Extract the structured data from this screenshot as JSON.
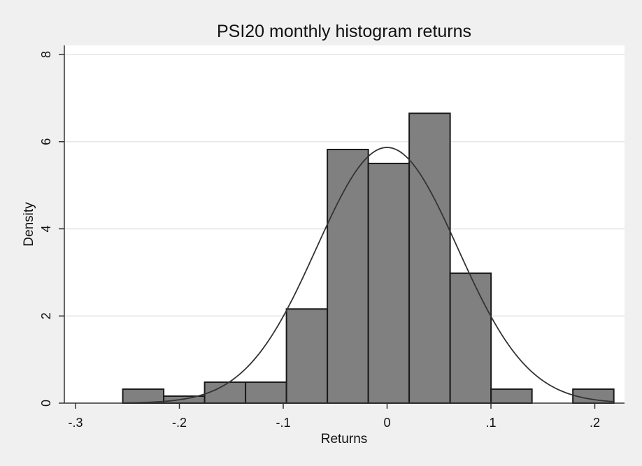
{
  "chart_data": {
    "type": "bar",
    "title": "PSI20 monthly histogram returns",
    "xlabel": "Returns",
    "ylabel": "Density",
    "xlim": [
      -0.3,
      0.22
    ],
    "ylim": [
      0,
      8
    ],
    "x_ticks": [
      -0.3,
      -0.2,
      -0.1,
      0,
      0.1,
      0.2
    ],
    "x_tick_labels": [
      "-.3",
      "-.2",
      "-.1",
      "0",
      ".1",
      ".2"
    ],
    "y_ticks": [
      0,
      2,
      4,
      6,
      8
    ],
    "y_tick_labels": [
      "0",
      "2",
      "4",
      "6",
      "8"
    ],
    "grid": "horizontal",
    "bar_color": "#808080",
    "bar_edge_color": "#1a1a1a",
    "bins": [
      {
        "x0": -0.2545,
        "x1": -0.2151,
        "density": 0.32
      },
      {
        "x0": -0.2151,
        "x1": -0.1757,
        "density": 0.16
      },
      {
        "x0": -0.1757,
        "x1": -0.1363,
        "density": 0.48
      },
      {
        "x0": -0.1363,
        "x1": -0.0969,
        "density": 0.48
      },
      {
        "x0": -0.0969,
        "x1": -0.0575,
        "density": 2.16
      },
      {
        "x0": -0.0575,
        "x1": -0.0181,
        "density": 5.82
      },
      {
        "x0": -0.0181,
        "x1": 0.0213,
        "density": 5.5
      },
      {
        "x0": 0.0213,
        "x1": 0.0607,
        "density": 6.65
      },
      {
        "x0": 0.0607,
        "x1": 0.1001,
        "density": 2.98
      },
      {
        "x0": 0.1001,
        "x1": 0.1395,
        "density": 0.32
      },
      {
        "x0": 0.1395,
        "x1": 0.1789,
        "density": 0
      },
      {
        "x0": 0.1789,
        "x1": 0.2183,
        "density": 0.32
      }
    ],
    "normal_curve": {
      "mean": 0.0,
      "sd": 0.068,
      "color": "#333333"
    }
  }
}
